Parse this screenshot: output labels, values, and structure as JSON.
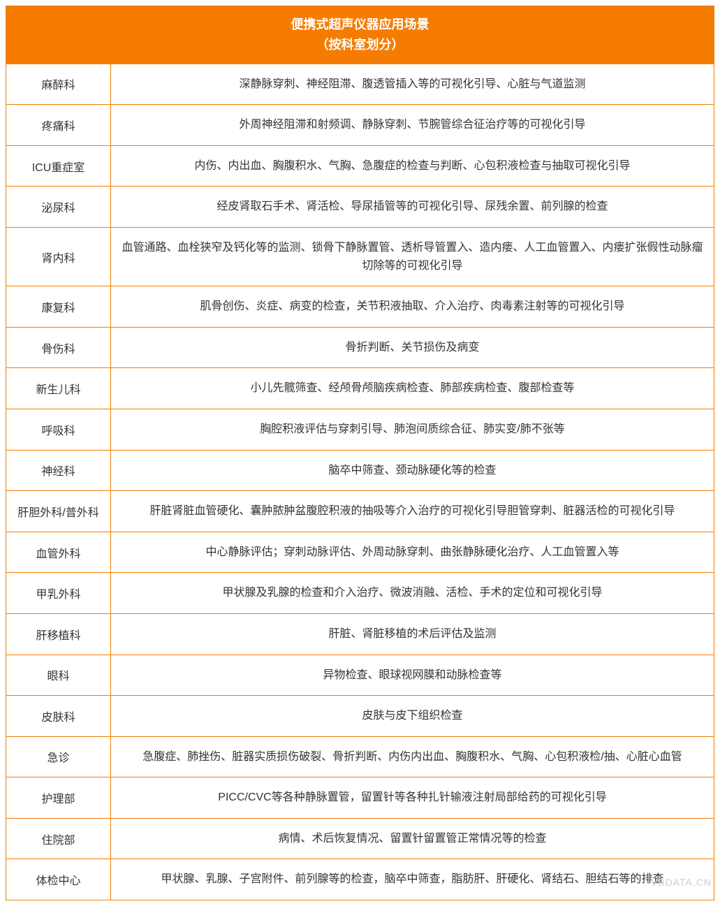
{
  "header": {
    "line1": "便携式超声仪器应用场景",
    "line2": "（按科室划分）"
  },
  "colors": {
    "header_bg": "#f57c00",
    "header_text": "#ffffff",
    "border": "#f57c00",
    "cell_text": "#333333",
    "background": "#ffffff",
    "watermark": "#cccccc"
  },
  "typography": {
    "header_fontsize": 18,
    "cell_fontsize": 16,
    "font_family": "Microsoft YaHei"
  },
  "layout": {
    "dept_col_width": 150,
    "cell_padding": 16
  },
  "rows": [
    {
      "dept": "麻醉科",
      "desc": "深静脉穿刺、神经阻滞、腹透管插入等的可视化引导、心脏与气道监测"
    },
    {
      "dept": "疼痛科",
      "desc": "外周神经阻滞和射频调、静脉穿刺、节腕管综合征治疗等的可视化引导"
    },
    {
      "dept": "ICU重症室",
      "desc": "内伤、内出血、胸腹积水、气胸、急腹症的检查与判断、心包积液检查与抽取可视化引导"
    },
    {
      "dept": "泌尿科",
      "desc": "经皮肾取石手术、肾活检、导尿插管等的可视化引导、尿残余置、前列腺的检查"
    },
    {
      "dept": "肾内科",
      "desc": "血管通路、血栓狭窄及钙化等的监测、锁骨下静脉置管、透析导管置入、造内瘘、人工血管置入、内瘘扩张假性动脉瘤切除等的可视化引导"
    },
    {
      "dept": "康复科",
      "desc": "肌骨创伤、炎症、病变的检查，关节积液抽取、介入治疗、肉毒素注射等的可视化引导"
    },
    {
      "dept": "骨伤科",
      "desc": "骨折判断、关节损伤及病变"
    },
    {
      "dept": "新生儿科",
      "desc": "小儿先髋筛查、经颅骨颅脑疾病检查、肺部疾病检查、腹部检查等"
    },
    {
      "dept": "呼吸科",
      "desc": "胸腔积液评估与穿刺引导、肺泡间质综合征、肺实变/肺不张等"
    },
    {
      "dept": "神经科",
      "desc": "脑卒中筛查、颈动脉硬化等的检查"
    },
    {
      "dept": "肝胆外科/普外科",
      "desc": "肝脏肾脏血管硬化、囊肿脓肿盆腹腔积液的抽吸等介入治疗的可视化引导胆管穿刺、脏器活检的可视化引导"
    },
    {
      "dept": "血管外科",
      "desc": "中心静脉评估；穿刺动脉评估、外周动脉穿刺、曲张静脉硬化治疗、人工血管置入等"
    },
    {
      "dept": "甲乳外科",
      "desc": "甲状腺及乳腺的检查和介入治疗、微波消融、活检、手术的定位和可视化引导"
    },
    {
      "dept": "肝移植科",
      "desc": "肝脏、肾脏移植的术后评估及监测"
    },
    {
      "dept": "眼科",
      "desc": "异物检查、眼球视网膜和动脉检查等"
    },
    {
      "dept": "皮肤科",
      "desc": "皮肤与皮下组织检查"
    },
    {
      "dept": "急诊",
      "desc": "急腹症、肺挫伤、脏器实质损伤破裂、骨折判断、内伤内出血、胸腹积水、气胸、心包积液检/抽、心脏心血管"
    },
    {
      "dept": "护理部",
      "desc": "PICC/CVC等各种静脉置管，留置针等各种扎针输液注射局部给药的可视化引导"
    },
    {
      "dept": "住院部",
      "desc": "病情、术后恢复情况、留置针留置管正常情况等的检查"
    },
    {
      "dept": "体检中心",
      "desc": "甲状腺、乳腺、子宫附件、前列腺等的检查，脑卒中筛查，脂肪肝、肝硬化、肾结石、胆结石等的排查"
    }
  ],
  "watermark": "VBDATA.CN"
}
